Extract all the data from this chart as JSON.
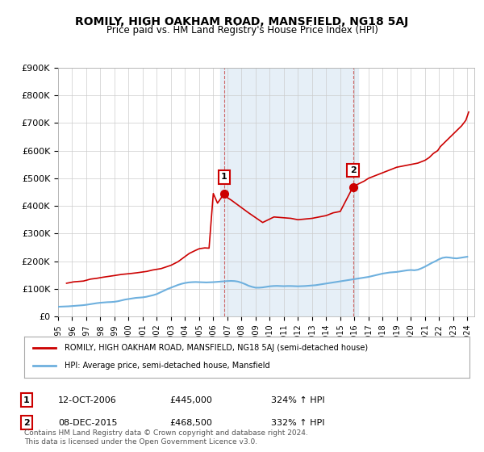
{
  "title": "ROMILY, HIGH OAKHAM ROAD, MANSFIELD, NG18 5AJ",
  "subtitle": "Price paid vs. HM Land Registry's House Price Index (HPI)",
  "ylabel": "",
  "ylim": [
    0,
    900000
  ],
  "yticks": [
    0,
    100000,
    200000,
    300000,
    400000,
    500000,
    600000,
    700000,
    800000,
    900000
  ],
  "ytick_labels": [
    "£0",
    "£100K",
    "£200K",
    "£300K",
    "£400K",
    "£500K",
    "£600K",
    "£700K",
    "£800K",
    "£900K"
  ],
  "hpi_color": "#6eb0de",
  "price_color": "#cc0000",
  "marker_color_1": "#cc0000",
  "marker_color_2": "#cc0000",
  "annotation_1": {
    "date": "12-OCT-2006",
    "price": "£445,000",
    "hpi": "324% ↑ HPI",
    "label": "1"
  },
  "annotation_2": {
    "date": "08-DEC-2015",
    "price": "£468,500",
    "hpi": "332% ↑ HPI",
    "label": "2"
  },
  "legend_property": "ROMILY, HIGH OAKHAM ROAD, MANSFIELD, NG18 5AJ (semi-detached house)",
  "legend_hpi": "HPI: Average price, semi-detached house, Mansfield",
  "footnote": "Contains HM Land Registry data © Crown copyright and database right 2024.\nThis data is licensed under the Open Government Licence v3.0.",
  "background_color": "#ffffff",
  "plot_bg_color": "#ffffff",
  "grid_color": "#cccccc",
  "hpi_data": {
    "years": [
      1995.0,
      1995.25,
      1995.5,
      1995.75,
      1996.0,
      1996.25,
      1996.5,
      1996.75,
      1997.0,
      1997.25,
      1997.5,
      1997.75,
      1998.0,
      1998.25,
      1998.5,
      1998.75,
      1999.0,
      1999.25,
      1999.5,
      1999.75,
      2000.0,
      2000.25,
      2000.5,
      2000.75,
      2001.0,
      2001.25,
      2001.5,
      2001.75,
      2002.0,
      2002.25,
      2002.5,
      2002.75,
      2003.0,
      2003.25,
      2003.5,
      2003.75,
      2004.0,
      2004.25,
      2004.5,
      2004.75,
      2005.0,
      2005.25,
      2005.5,
      2005.75,
      2006.0,
      2006.25,
      2006.5,
      2006.75,
      2007.0,
      2007.25,
      2007.5,
      2007.75,
      2008.0,
      2008.25,
      2008.5,
      2008.75,
      2009.0,
      2009.25,
      2009.5,
      2009.75,
      2010.0,
      2010.25,
      2010.5,
      2010.75,
      2011.0,
      2011.25,
      2011.5,
      2011.75,
      2012.0,
      2012.25,
      2012.5,
      2012.75,
      2013.0,
      2013.25,
      2013.5,
      2013.75,
      2014.0,
      2014.25,
      2014.5,
      2014.75,
      2015.0,
      2015.25,
      2015.5,
      2015.75,
      2016.0,
      2016.25,
      2016.5,
      2016.75,
      2017.0,
      2017.25,
      2017.5,
      2017.75,
      2018.0,
      2018.25,
      2018.5,
      2018.75,
      2019.0,
      2019.25,
      2019.5,
      2019.75,
      2020.0,
      2020.25,
      2020.5,
      2020.75,
      2021.0,
      2021.25,
      2021.5,
      2021.75,
      2022.0,
      2022.25,
      2022.5,
      2022.75,
      2023.0,
      2023.25,
      2023.5,
      2023.75,
      2024.0
    ],
    "values": [
      35000,
      35500,
      36000,
      36500,
      37500,
      38500,
      39500,
      40500,
      42000,
      44000,
      46000,
      48000,
      49500,
      50500,
      51500,
      52000,
      53000,
      55000,
      58000,
      61000,
      63000,
      65000,
      67000,
      68000,
      69000,
      71000,
      74000,
      77000,
      81000,
      87000,
      93000,
      99000,
      104000,
      109000,
      114000,
      118000,
      121000,
      123000,
      124000,
      124500,
      124000,
      123500,
      123000,
      123500,
      124000,
      125000,
      126000,
      127000,
      128000,
      128500,
      128000,
      126000,
      122000,
      117000,
      111000,
      107000,
      104000,
      104000,
      105000,
      107000,
      109000,
      110000,
      110500,
      110000,
      109500,
      110000,
      110000,
      109500,
      109000,
      109500,
      110000,
      111000,
      112000,
      113000,
      115000,
      117000,
      119000,
      121000,
      123000,
      125000,
      127000,
      129000,
      131000,
      133000,
      135000,
      137000,
      139000,
      141000,
      143000,
      146000,
      149000,
      152000,
      155000,
      157000,
      159000,
      160000,
      161000,
      163000,
      165000,
      167000,
      168000,
      167000,
      169000,
      174000,
      180000,
      187000,
      194000,
      200000,
      207000,
      212000,
      214000,
      213000,
      211000,
      210000,
      212000,
      214000,
      216000
    ]
  },
  "property_data": {
    "years": [
      1995.6,
      1996.1,
      1996.8,
      1997.3,
      1997.75,
      1998.2,
      1998.6,
      1999.0,
      1999.5,
      2000.1,
      2000.6,
      2001.3,
      2001.7,
      2002.3,
      2003.0,
      2003.5,
      2003.9,
      2004.3,
      2004.7,
      2005.0,
      2005.4,
      2005.7,
      2006.0,
      2006.3,
      2006.78,
      2007.0,
      2007.3,
      2007.7,
      2008.1,
      2008.5,
      2009.5,
      2009.9,
      2010.3,
      2011.5,
      2012.0,
      2013.0,
      2013.5,
      2014.0,
      2014.5,
      2015.0,
      2015.9,
      2016.3,
      2016.7,
      2017.0,
      2017.5,
      2018.0,
      2018.5,
      2019.0,
      2019.5,
      2020.0,
      2020.5,
      2021.0,
      2021.3,
      2021.6,
      2021.9,
      2022.1,
      2022.4,
      2022.7,
      2023.0,
      2023.3,
      2023.6,
      2023.9,
      2024.1
    ],
    "values": [
      120000,
      125000,
      128000,
      135000,
      138000,
      142000,
      145000,
      148000,
      152000,
      155000,
      158000,
      163000,
      168000,
      173000,
      185000,
      198000,
      213000,
      228000,
      238000,
      245000,
      248000,
      247000,
      445000,
      410000,
      445000,
      430000,
      420000,
      405000,
      390000,
      375000,
      340000,
      350000,
      360000,
      355000,
      350000,
      355000,
      360000,
      365000,
      375000,
      380000,
      468500,
      480000,
      490000,
      500000,
      510000,
      520000,
      530000,
      540000,
      545000,
      550000,
      555000,
      565000,
      575000,
      590000,
      600000,
      615000,
      630000,
      645000,
      660000,
      675000,
      690000,
      710000,
      740000
    ]
  },
  "sale_1": {
    "year": 2006.78,
    "value": 445000
  },
  "sale_2": {
    "year": 2015.9,
    "value": 468500
  },
  "shade_x1_start": 2006.5,
  "shade_x1_end": 2016.25,
  "xtick_years": [
    1995,
    1996,
    1997,
    1998,
    1999,
    2000,
    2001,
    2002,
    2003,
    2004,
    2005,
    2006,
    2007,
    2008,
    2009,
    2010,
    2011,
    2012,
    2013,
    2014,
    2015,
    2016,
    2017,
    2018,
    2019,
    2020,
    2021,
    2022,
    2023,
    2024
  ]
}
